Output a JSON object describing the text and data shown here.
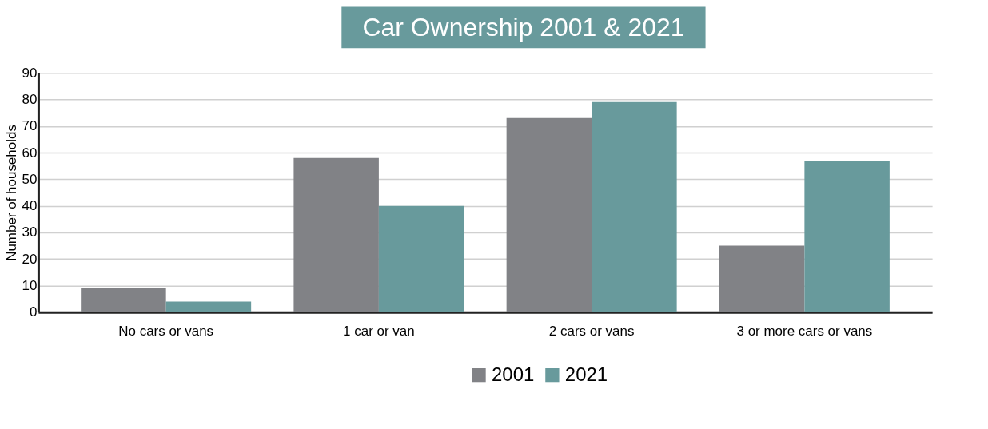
{
  "chart_data": {
    "type": "bar",
    "title": "Car Ownership 2001 & 2021",
    "ylabel": "Number of households",
    "categories": [
      "No cars or vans",
      "1 car or van",
      "2 cars or vans",
      "3 or more cars or vans"
    ],
    "series": [
      {
        "name": "2001",
        "color": "#818286",
        "values": [
          9,
          58,
          73,
          25
        ]
      },
      {
        "name": "2021",
        "color": "#689a9c",
        "values": [
          4,
          40,
          79,
          57
        ]
      }
    ],
    "ylim": [
      0,
      90
    ],
    "yticks": [
      0,
      10,
      20,
      30,
      40,
      50,
      60,
      70,
      80,
      90
    ],
    "grid": "y",
    "legend": "bottom"
  }
}
